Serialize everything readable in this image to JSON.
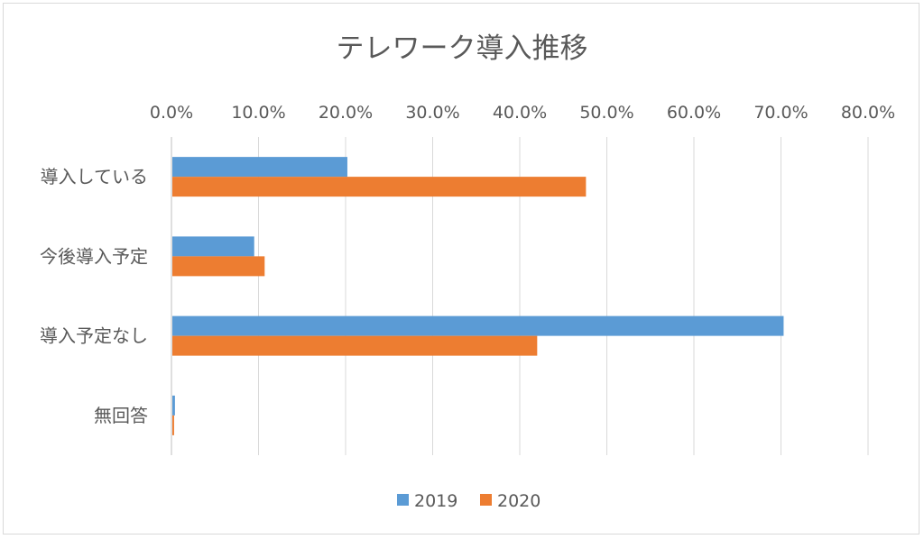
{
  "chart_data": {
    "type": "bar",
    "orientation": "horizontal",
    "title": "テレワーク導入推移",
    "categories": [
      "導入している",
      "今後導入予定",
      "導入予定なし",
      "無回答"
    ],
    "series": [
      {
        "name": "2019",
        "color": "#5b9bd5",
        "values": [
          20.1,
          9.4,
          70.2,
          0.3
        ]
      },
      {
        "name": "2020",
        "color": "#ed7d31",
        "values": [
          47.5,
          10.6,
          41.9,
          0.2
        ]
      }
    ],
    "x_ticks": [
      "0.0%",
      "10.0%",
      "20.0%",
      "30.0%",
      "40.0%",
      "50.0%",
      "60.0%",
      "70.0%",
      "80.0%"
    ],
    "xlim": [
      0,
      80
    ],
    "x_axis_position": "top",
    "grid": true,
    "legend_position": "bottom"
  }
}
